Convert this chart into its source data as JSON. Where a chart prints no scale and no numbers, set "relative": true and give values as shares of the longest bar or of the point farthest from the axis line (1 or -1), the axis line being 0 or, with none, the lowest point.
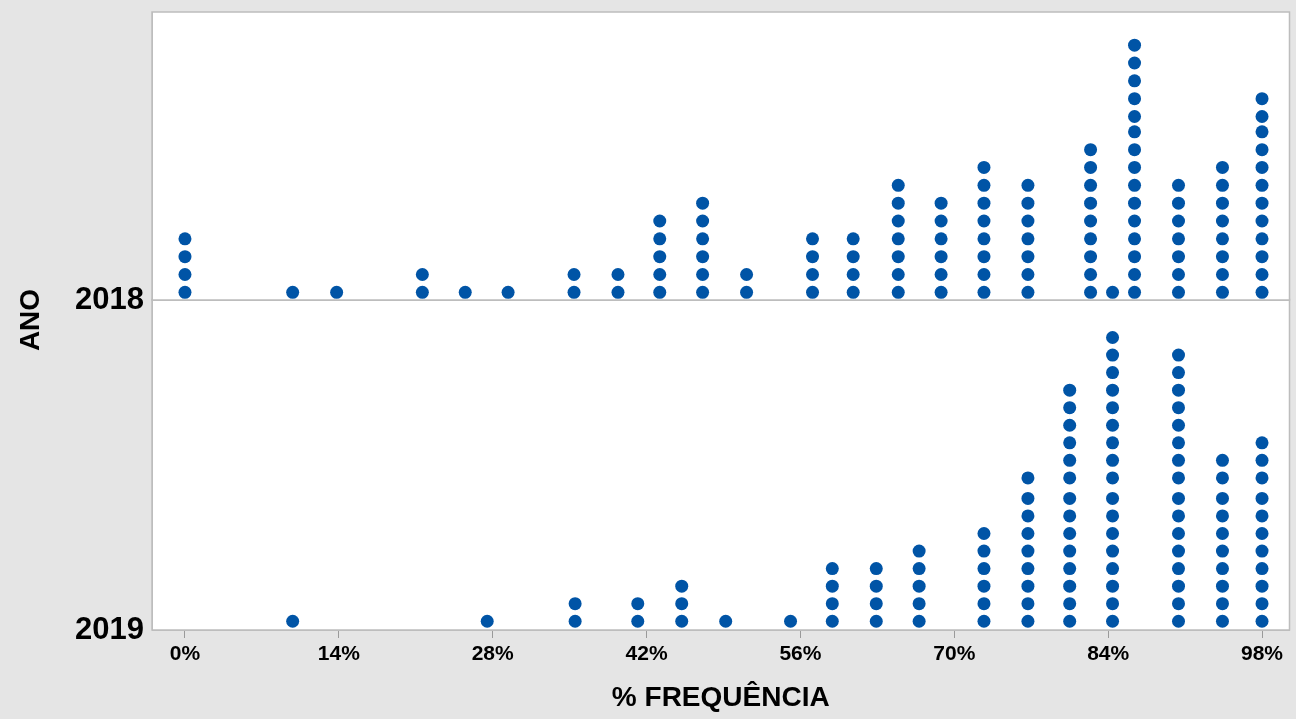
{
  "chart_data": [
    {
      "type": "scatter",
      "ylabel": "ANO",
      "relative": true,
      "tick_labels": false,
      "legend": false,
      "xlim": [
        -3,
        100.5
      ],
      "annotations": [
        "2018"
      ],
      "series": [
        {
          "color": "#0054a6",
          "x": [
            0,
            0,
            0,
            0,
            9.8,
            13.8,
            21.6,
            21.6,
            25.5,
            29.4,
            35.4,
            35.4,
            39.4,
            39.4,
            43.2,
            43.2,
            43.2,
            43.2,
            43.2,
            47.1,
            47.1,
            47.1,
            47.1,
            47.1,
            47.1,
            51.1,
            51.1,
            57.1,
            57.1,
            57.1,
            57.1,
            60.8,
            60.8,
            60.8,
            60.8,
            64.9,
            64.9,
            64.9,
            64.9,
            64.9,
            64.9,
            64.9,
            68.8,
            68.8,
            68.8,
            68.8,
            68.8,
            68.8,
            72.7,
            72.7,
            72.7,
            72.7,
            72.7,
            72.7,
            72.7,
            72.7,
            76.7,
            76.7,
            76.7,
            76.7,
            76.7,
            76.7,
            76.7,
            82.4,
            82.4,
            82.4,
            82.4,
            82.4,
            82.4,
            82.4,
            82.4,
            82.4,
            84.4,
            86.4,
            86.4,
            86.4,
            86.4,
            86.4,
            86.4,
            86.4,
            86.4,
            86.4,
            86.4,
            86.4,
            86.4,
            86.4,
            86.4,
            86.4,
            90.4,
            90.4,
            90.4,
            90.4,
            90.4,
            90.4,
            90.4,
            94.4,
            94.4,
            94.4,
            94.4,
            94.4,
            94.4,
            94.4,
            94.4,
            98,
            98,
            98,
            98,
            98,
            98,
            98,
            98,
            98,
            98,
            98,
            98
          ],
          "values": [
            0.03,
            0.1,
            0.17,
            0.24,
            0.03,
            0.03,
            0.03,
            0.1,
            0.03,
            0.03,
            0.03,
            0.1,
            0.03,
            0.1,
            0.03,
            0.1,
            0.17,
            0.24,
            0.31,
            0.03,
            0.1,
            0.17,
            0.24,
            0.31,
            0.38,
            0.03,
            0.1,
            0.03,
            0.1,
            0.17,
            0.24,
            0.03,
            0.1,
            0.17,
            0.24,
            0.03,
            0.1,
            0.17,
            0.24,
            0.31,
            0.38,
            0.45,
            0.03,
            0.1,
            0.17,
            0.24,
            0.31,
            0.38,
            0.03,
            0.1,
            0.17,
            0.24,
            0.31,
            0.38,
            0.45,
            0.52,
            0.03,
            0.1,
            0.17,
            0.24,
            0.31,
            0.38,
            0.45,
            0.03,
            0.1,
            0.17,
            0.24,
            0.31,
            0.38,
            0.45,
            0.52,
            0.59,
            0.03,
            0.03,
            0.1,
            0.17,
            0.24,
            0.31,
            0.38,
            0.45,
            0.52,
            0.59,
            0.66,
            0.72,
            0.79,
            0.86,
            0.93,
            1,
            0.03,
            0.1,
            0.17,
            0.24,
            0.31,
            0.38,
            0.45,
            0.03,
            0.1,
            0.17,
            0.24,
            0.31,
            0.38,
            0.45,
            0.52,
            0.03,
            0.1,
            0.17,
            0.24,
            0.31,
            0.38,
            0.45,
            0.52,
            0.59,
            0.66,
            0.72,
            0.79
          ]
        }
      ],
      "marker": "circle"
    },
    {
      "type": "scatter",
      "xlabel": "% FREQUÊNCIA",
      "relative": true,
      "tick_labels": "x",
      "legend": false,
      "xlim": [
        -3,
        100.5
      ],
      "xticks": [
        {
          "value": 0,
          "label": "0%"
        },
        {
          "value": 14,
          "label": "14%"
        },
        {
          "value": 28,
          "label": "28%"
        },
        {
          "value": 42,
          "label": "42%"
        },
        {
          "value": 56,
          "label": "56%"
        },
        {
          "value": 70,
          "label": "70%"
        },
        {
          "value": 84,
          "label": "84%"
        },
        {
          "value": 98,
          "label": "98%"
        }
      ],
      "annotations": [
        "2019"
      ],
      "series": [
        {
          "color": "#0054a6",
          "x": [
            9.8,
            27.5,
            35.5,
            35.5,
            41.2,
            41.2,
            45.2,
            45.2,
            45.2,
            49.2,
            55.1,
            58.9,
            58.9,
            58.9,
            58.9,
            62.9,
            62.9,
            62.9,
            62.9,
            66.8,
            66.8,
            66.8,
            66.8,
            66.8,
            72.7,
            72.7,
            72.7,
            72.7,
            72.7,
            72.7,
            76.7,
            76.7,
            76.7,
            76.7,
            76.7,
            76.7,
            76.7,
            76.7,
            76.7,
            80.5,
            80.5,
            80.5,
            80.5,
            80.5,
            80.5,
            80.5,
            80.5,
            80.5,
            80.5,
            80.5,
            80.5,
            80.5,
            80.5,
            84.4,
            84.4,
            84.4,
            84.4,
            84.4,
            84.4,
            84.4,
            84.4,
            84.4,
            84.4,
            84.4,
            84.4,
            84.4,
            84.4,
            84.4,
            84.4,
            84.4,
            90.4,
            90.4,
            90.4,
            90.4,
            90.4,
            90.4,
            90.4,
            90.4,
            90.4,
            90.4,
            90.4,
            90.4,
            90.4,
            90.4,
            90.4,
            90.4,
            94.4,
            94.4,
            94.4,
            94.4,
            94.4,
            94.4,
            94.4,
            94.4,
            94.4,
            94.4,
            98,
            98,
            98,
            98,
            98,
            98,
            98,
            98,
            98,
            98,
            98
          ],
          "values": [
            0.03,
            0.03,
            0.03,
            0.09,
            0.03,
            0.09,
            0.03,
            0.09,
            0.15,
            0.03,
            0.03,
            0.03,
            0.09,
            0.15,
            0.21,
            0.03,
            0.09,
            0.15,
            0.21,
            0.03,
            0.09,
            0.15,
            0.21,
            0.27,
            0.03,
            0.09,
            0.15,
            0.21,
            0.27,
            0.33,
            0.03,
            0.09,
            0.15,
            0.21,
            0.27,
            0.33,
            0.39,
            0.45,
            0.52,
            0.03,
            0.09,
            0.15,
            0.21,
            0.27,
            0.33,
            0.39,
            0.45,
            0.52,
            0.58,
            0.64,
            0.7,
            0.76,
            0.82,
            0.03,
            0.09,
            0.15,
            0.21,
            0.27,
            0.33,
            0.39,
            0.45,
            0.52,
            0.58,
            0.64,
            0.7,
            0.76,
            0.82,
            0.88,
            0.94,
            1,
            0.03,
            0.09,
            0.15,
            0.21,
            0.27,
            0.33,
            0.39,
            0.45,
            0.52,
            0.58,
            0.64,
            0.7,
            0.76,
            0.82,
            0.88,
            0.94,
            0.03,
            0.09,
            0.15,
            0.21,
            0.27,
            0.33,
            0.39,
            0.45,
            0.52,
            0.58,
            0.03,
            0.09,
            0.15,
            0.21,
            0.27,
            0.33,
            0.39,
            0.45,
            0.52,
            0.58,
            0.64
          ]
        }
      ],
      "marker": "circle"
    }
  ]
}
